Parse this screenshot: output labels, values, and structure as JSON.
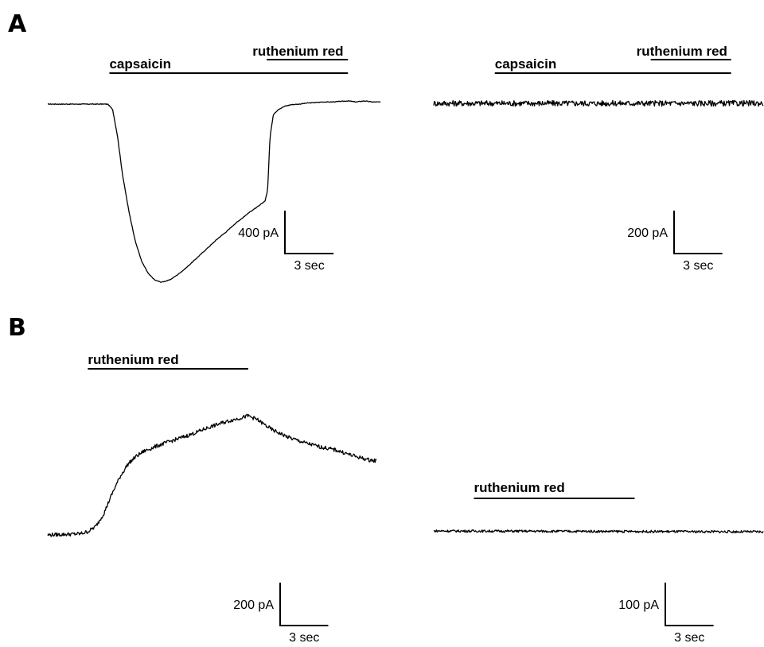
{
  "panels": {
    "A": {
      "letter": "A"
    },
    "B": {
      "letter": "B"
    }
  },
  "chart_data": [
    {
      "type": "line",
      "panel": "A",
      "position": "left",
      "bars": [
        {
          "label": "capsaicin",
          "start": 3.8,
          "end": 18.5
        },
        {
          "label": "ruthenium red",
          "start": 13.5,
          "end": 18.5
        }
      ],
      "scale_bar": {
        "y_label": "400 pA",
        "y_value": 400,
        "x_label": "3 sec",
        "x_value": 3
      },
      "xlim": [
        0,
        20.5
      ],
      "ylim": [
        -1750,
        100
      ],
      "series": [
        {
          "x": [
            0,
            3.7,
            4.0,
            4.3,
            4.6,
            5.0,
            5.4,
            5.8,
            6.2,
            6.6,
            7.0,
            7.5,
            8.0,
            8.5,
            9.0,
            9.5,
            10.0,
            10.5,
            11.0,
            11.5,
            12.0,
            12.5,
            13.0,
            13.4,
            13.55,
            13.7,
            13.9,
            14.2,
            14.6,
            15.0,
            15.5,
            16.0,
            16.5,
            17.0,
            17.5,
            18.0,
            18.5,
            19.0,
            19.5,
            20.0,
            20.5
          ],
          "y": [
            0,
            0,
            -50,
            -300,
            -650,
            -1000,
            -1280,
            -1470,
            -1580,
            -1640,
            -1660,
            -1640,
            -1590,
            -1530,
            -1460,
            -1390,
            -1320,
            -1250,
            -1190,
            -1120,
            -1060,
            -1000,
            -950,
            -900,
            -800,
            -300,
            -100,
            -50,
            -20,
            -5,
            0,
            10,
            15,
            20,
            20,
            25,
            30,
            20,
            30,
            20,
            20
          ]
        }
      ]
    },
    {
      "type": "line",
      "panel": "A",
      "position": "right",
      "bars": [
        {
          "label": "capsaicin",
          "start": 3.8,
          "end": 18.5
        },
        {
          "label": "ruthenium red",
          "start": 13.5,
          "end": 18.5
        }
      ],
      "scale_bar": {
        "y_label": "200 pA",
        "y_value": 200,
        "x_label": "3 sec",
        "x_value": 3
      },
      "xlim": [
        0,
        20.5
      ],
      "ylim": [
        -875,
        50
      ],
      "series": [
        {
          "x": [
            0,
            20.5
          ],
          "y": [
            0,
            0
          ],
          "noise": 6
        }
      ]
    },
    {
      "type": "line",
      "panel": "B",
      "position": "left",
      "bars": [
        {
          "label": "ruthenium red",
          "start": 2.5,
          "end": 12.5
        }
      ],
      "scale_bar": {
        "y_label": "200 pA",
        "y_value": 200,
        "x_label": "3 sec",
        "x_value": 3
      },
      "xlim": [
        0,
        20.5
      ],
      "ylim": [
        -50,
        600
      ],
      "series": [
        {
          "x": [
            0,
            2.0,
            2.5,
            3.0,
            3.5,
            4.0,
            4.5,
            5.0,
            5.5,
            6.0,
            7.0,
            8.0,
            9.0,
            10.0,
            11.0,
            12.0,
            12.5,
            13.0,
            13.5,
            14.0,
            15.0,
            16.0,
            17.0,
            18.0,
            19.0,
            20.0,
            20.5
          ],
          "y": [
            0,
            5,
            15,
            40,
            100,
            190,
            270,
            330,
            365,
            390,
            420,
            445,
            470,
            500,
            525,
            545,
            555,
            540,
            515,
            490,
            455,
            430,
            410,
            395,
            370,
            350,
            345
          ],
          "noise": 4
        }
      ]
    },
    {
      "type": "line",
      "panel": "B",
      "position": "right",
      "bars": [
        {
          "label": "ruthenium red",
          "start": 2.5,
          "end": 12.5
        }
      ],
      "scale_bar": {
        "y_label": "100 pA",
        "y_value": 100,
        "x_label": "3 sec",
        "x_value": 3
      },
      "xlim": [
        0,
        20.5
      ],
      "ylim": [
        -25,
        300
      ],
      "series": [
        {
          "x": [
            0,
            20.5
          ],
          "y": [
            0,
            -2
          ],
          "noise": 2.5
        }
      ]
    }
  ]
}
